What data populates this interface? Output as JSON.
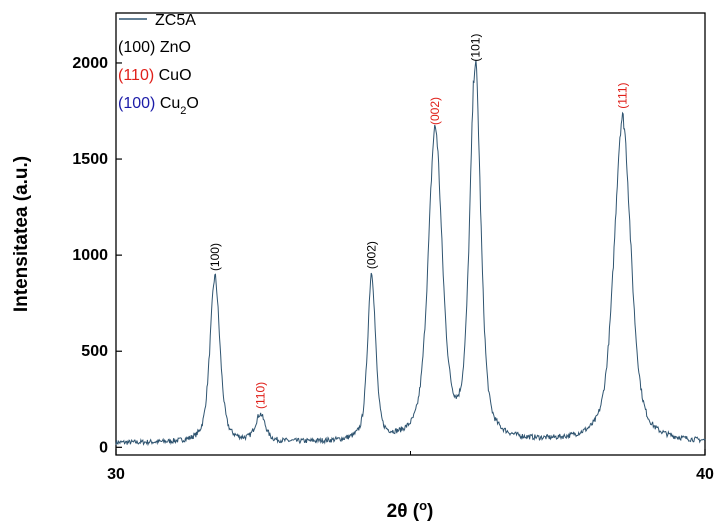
{
  "chart_data": {
    "type": "line",
    "xlabel_main": "2θ (",
    "xlabel_unit": "o",
    "xlabel_close": ")",
    "ylabel": "Intensitatea (a.u.)",
    "xlim": [
      30,
      40
    ],
    "ylim": [
      -40,
      2260
    ],
    "x_ticks": [
      30,
      40
    ],
    "x_minor_ticks": [
      35
    ],
    "y_ticks": [
      0,
      500,
      1000,
      1500,
      2000
    ],
    "series": [
      {
        "name": "ZC5A",
        "color": "#2f5470",
        "baseline": 22,
        "peaks": [
          {
            "x": 31.68,
            "height": 860,
            "width": 0.1
          },
          {
            "x": 32.45,
            "height": 140,
            "width": 0.1
          },
          {
            "x": 34.34,
            "height": 870,
            "width": 0.08
          },
          {
            "x": 35.42,
            "height": 1610,
            "width": 0.14
          },
          {
            "x": 36.1,
            "height": 1940,
            "width": 0.11
          },
          {
            "x": 38.6,
            "height": 1690,
            "width": 0.17
          }
        ]
      }
    ],
    "peak_labels": [
      {
        "text": "(100)",
        "x": 31.68,
        "y": 990,
        "color": "#000000"
      },
      {
        "text": "(110)",
        "x": 32.45,
        "y": 270,
        "color": "#e0201a"
      },
      {
        "text": "(002)",
        "x": 34.34,
        "y": 1000,
        "color": "#000000"
      },
      {
        "text": "(002)",
        "x": 35.42,
        "y": 1750,
        "color": "#e0201a"
      },
      {
        "text": "(101)",
        "x": 36.1,
        "y": 2080,
        "color": "#000000"
      },
      {
        "text": "(111)",
        "x": 38.6,
        "y": 1830,
        "color": "#e0201a"
      }
    ],
    "legend": {
      "series_label": "ZC5A",
      "entries": [
        {
          "index": "(100)",
          "index_color": "#000000",
          "name": "ZnO",
          "name_sub": ""
        },
        {
          "index": "(110)",
          "index_color": "#e0201a",
          "name": "CuO",
          "name_sub": ""
        },
        {
          "index": "(100)",
          "index_color": "#1c1ca8",
          "name": "Cu",
          "name_sub": "2",
          "name_tail": "O"
        }
      ]
    }
  }
}
